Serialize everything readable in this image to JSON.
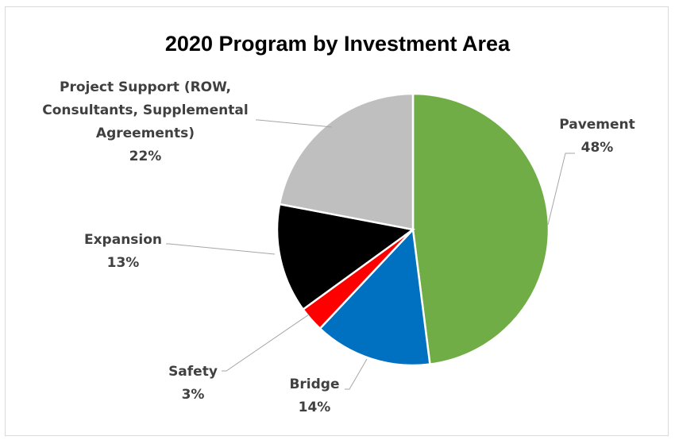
{
  "chart_data": {
    "type": "pie",
    "title": "2020 Program by Investment Area",
    "slices": [
      {
        "label": "Pavement",
        "value": 48,
        "value_label": "48%",
        "color": "#70ad47"
      },
      {
        "label": "Bridge",
        "value": 14,
        "value_label": "14%",
        "color": "#0070c0"
      },
      {
        "label": "Safety",
        "value": 3,
        "value_label": "3%",
        "color": "#ff0000"
      },
      {
        "label": "Expansion",
        "value": 13,
        "value_label": "13%",
        "color": "#000000"
      },
      {
        "label": "Project Support (ROW, Consultants, Supplemental Agreements)",
        "value": 22,
        "value_label": "22%",
        "color": "#bfbfbf",
        "label_lines": [
          "Project Support (ROW,",
          "Consultants, Supplemental",
          "Agreements)"
        ]
      }
    ],
    "start_angle_deg": 0,
    "direction": "clockwise",
    "legend": "none",
    "data_labels": "category name and percentage, outside with leader lines"
  }
}
